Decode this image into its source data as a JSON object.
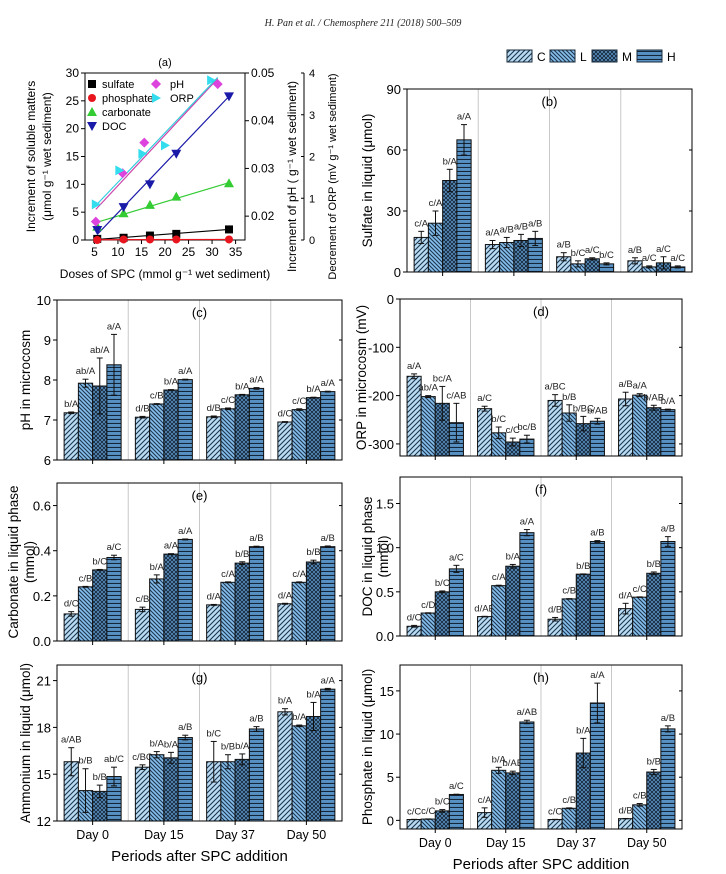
{
  "header": {
    "citation": "H. Pan et al. / Chemosphere 211 (2018) 500–509"
  },
  "legend": {
    "items": [
      {
        "label": "C",
        "pattern": "diag-up",
        "color": "#a8d3f0"
      },
      {
        "label": "L",
        "pattern": "diag-down",
        "color": "#7fb8e6"
      },
      {
        "label": "M",
        "pattern": "cross",
        "color": "#5f98c8"
      },
      {
        "label": "H",
        "pattern": "horizontal",
        "color": "#4f87b8"
      }
    ]
  },
  "chart_data": [
    {
      "id": "a",
      "type": "scatter",
      "panel_label": "(a)",
      "xlabel": "Doses of SPC (mmol g⁻¹ wet sediment)",
      "ylabel": "Increment of soluble matters (μmol g⁻¹ wet sediment)",
      "ylabel_line1": "Increment of soluble matters",
      "ylabel_line2": "(μmol g⁻¹ wet sediment)",
      "y2label": "Increment of pH ( g⁻¹ wet sediment)",
      "y3label": "Decrement of ORP (mV g⁻¹ wet sediment)",
      "xlim": [
        3,
        37
      ],
      "ylim": [
        0,
        30
      ],
      "y2lim": [
        0.015,
        0.05
      ],
      "y3lim": [
        0,
        4
      ],
      "xticks": [
        5,
        10,
        15,
        20,
        25,
        30,
        35
      ],
      "yticks": [
        0,
        5,
        10,
        15,
        20,
        25,
        30
      ],
      "y2ticks": [
        0.02,
        0.03,
        0.04,
        0.05
      ],
      "y3ticks": [
        0,
        1,
        2,
        3,
        4
      ],
      "series": [
        {
          "name": "sulfate",
          "marker": "square",
          "color": "#000000",
          "line_color": "#000000",
          "x": [
            5.6,
            11.2,
            16.8,
            22.4,
            33.6
          ],
          "y": [
            0.2,
            0.4,
            0.8,
            1.1,
            1.9
          ]
        },
        {
          "name": "phosphate",
          "marker": "circle",
          "color": "#e8141e",
          "line_color": "#e8141e",
          "x": [
            5.6,
            11.2,
            16.8,
            22.4,
            33.6
          ],
          "y": [
            0.0,
            0.1,
            0.1,
            0.1,
            0.1
          ]
        },
        {
          "name": "carbonate",
          "marker": "triangle-up",
          "color": "#33cc33",
          "line_color": "#33cc33",
          "x": [
            5.6,
            11.2,
            16.8,
            22.4,
            33.6
          ],
          "y": [
            2.4,
            4.8,
            6.3,
            7.8,
            10.2
          ]
        },
        {
          "name": "DOC",
          "marker": "triangle-down",
          "color": "#1a1aa8",
          "line_color": "#1a1aa8",
          "x": [
            5.6,
            11.2,
            16.8,
            22.4,
            33.6
          ],
          "y": [
            1.8,
            5.9,
            10.0,
            15.5,
            25.8
          ]
        },
        {
          "name": "pH",
          "marker": "diamond",
          "color": "#dd44dd",
          "line_color": "#cc44aa",
          "x": [
            5.3,
            11.0,
            15.6,
            31.2
          ],
          "y": [
            3.3,
            12.0,
            17.5,
            28.0
          ]
        },
        {
          "name": "ORP",
          "marker": "triangle-right",
          "color": "#33ddee",
          "line_color": "#33ccdd",
          "x": [
            5.3,
            10.3,
            15.2,
            20.0,
            29.8
          ],
          "y": [
            6.4,
            12.5,
            15.5,
            17.0,
            28.7
          ]
        }
      ],
      "fits": [
        {
          "name": "sulfate",
          "x": [
            5.6,
            33.6
          ],
          "y": [
            0.1,
            1.9
          ]
        },
        {
          "name": "phosphate",
          "x": [
            5.6,
            33.6
          ],
          "y": [
            0.05,
            0.1
          ]
        },
        {
          "name": "carbonate",
          "x": [
            5.6,
            33.6
          ],
          "y": [
            3.2,
            10.3
          ]
        },
        {
          "name": "DOC",
          "x": [
            5.6,
            33.6
          ],
          "y": [
            1.0,
            25.8
          ]
        },
        {
          "name": "pH",
          "x": [
            5.3,
            31.2
          ],
          "y": [
            5.5,
            29.0
          ]
        },
        {
          "name": "ORP",
          "x": [
            5.3,
            31.2
          ],
          "y": [
            6.2,
            29.2
          ]
        }
      ]
    },
    {
      "id": "b",
      "type": "bar",
      "panel_label": "(b)",
      "ylabel": "Sulfate in liquid (μmol)",
      "ylim": [
        0,
        90
      ],
      "yticks": [
        0,
        30,
        60,
        90
      ],
      "categories": [
        "Day 0",
        "Day 15",
        "Day 37",
        "Day 50"
      ],
      "show_xticks": false,
      "series": [
        {
          "name": "C",
          "values": [
            17,
            13.5,
            7.5,
            5.5
          ],
          "errors": [
            3,
            2,
            2,
            1.5
          ],
          "labels": [
            "c/A",
            "a/A",
            "a/B",
            "a/B"
          ]
        },
        {
          "name": "L",
          "values": [
            24,
            14.5,
            4,
            2.5
          ],
          "errors": [
            6,
            2.5,
            1.5,
            0.5
          ],
          "labels": [
            "c/A",
            "a/B",
            "b/C",
            "a/C"
          ]
        },
        {
          "name": "M",
          "values": [
            45,
            15.5,
            6.5,
            4.5
          ],
          "errors": [
            5.5,
            3,
            0.5,
            3
          ],
          "labels": [
            "b/A",
            "a/B",
            "a/C",
            "a/C"
          ]
        },
        {
          "name": "H",
          "values": [
            65,
            16.5,
            4,
            2.5
          ],
          "errors": [
            7.5,
            3.5,
            0.5,
            0.5
          ],
          "labels": [
            "a/A",
            "a/B",
            "b/C",
            "a/C"
          ]
        }
      ]
    },
    {
      "id": "c",
      "type": "bar",
      "panel_label": "(c)",
      "ylabel": "pH in microcosm",
      "ylim": [
        6,
        10
      ],
      "yticks": [
        6,
        7,
        8,
        9,
        10
      ],
      "categories": [
        "Day 0",
        "Day 15",
        "Day 37",
        "Day 50"
      ],
      "show_xticks": false,
      "series": [
        {
          "name": "C",
          "values": [
            7.18,
            7.07,
            7.08,
            6.95
          ],
          "errors": [
            0.02,
            0.02,
            0.02,
            0.01
          ],
          "labels": [
            "b/A",
            "d/B",
            "d/B",
            "d/C"
          ]
        },
        {
          "name": "L",
          "values": [
            7.92,
            7.4,
            7.28,
            7.26
          ],
          "errors": [
            0.1,
            0.01,
            0.02,
            0.02
          ],
          "labels": [
            "ab/A",
            "c/B",
            "c/C",
            "c/C"
          ]
        },
        {
          "name": "M",
          "values": [
            7.85,
            7.75,
            7.63,
            7.56
          ],
          "errors": [
            0.7,
            0.01,
            0.01,
            0.01
          ],
          "labels": [
            "ab/A",
            "b/A",
            "b/A",
            "b/A"
          ]
        },
        {
          "name": "H",
          "values": [
            8.38,
            8.01,
            7.79,
            7.71
          ],
          "errors": [
            0.76,
            0.01,
            0.02,
            0.01
          ],
          "labels": [
            "a/A",
            "a/A",
            "a/A",
            "a/A"
          ]
        }
      ]
    },
    {
      "id": "d",
      "type": "bar",
      "panel_label": "(d)",
      "ylabel": "ORP in microcosm (mV)",
      "ylim": [
        -325,
        0
      ],
      "yticks": [
        -300,
        -200,
        -100,
        0
      ],
      "bar_base": -325,
      "categories": [
        "Day 0",
        "Day 15",
        "Day 37",
        "Day 50"
      ],
      "show_xticks": false,
      "series": [
        {
          "name": "C",
          "values": [
            -160,
            -227,
            -210,
            -207
          ],
          "errors": [
            5,
            5,
            12,
            14
          ],
          "labels": [
            "a/A",
            "a/C",
            "a/BC",
            "a/B"
          ]
        },
        {
          "name": "L",
          "values": [
            -202,
            -277,
            -236,
            -199
          ],
          "errors": [
            2,
            12,
            17,
            3
          ],
          "labels": [
            "ab/A",
            "b/C",
            "b/B",
            "a/A"
          ]
        },
        {
          "name": "M",
          "values": [
            -216,
            -296,
            -258,
            -225
          ],
          "errors": [
            35,
            8,
            15,
            5
          ],
          "labels": [
            "bc/A",
            "c/C",
            "b/BC",
            "b/AB"
          ]
        },
        {
          "name": "H",
          "values": [
            -256,
            -290,
            -253,
            -229
          ],
          "errors": [
            40,
            8,
            6,
            1
          ],
          "labels": [
            "c/AB",
            "bc/B",
            "b/AB",
            "b/A"
          ]
        }
      ]
    },
    {
      "id": "e",
      "type": "bar",
      "panel_label": "(e)",
      "ylabel": "Carbonate in liquid phase (mmol)",
      "ylabel_line1": "Carbonate in liquid phase",
      "ylabel_line2": "(mmol)",
      "ylim": [
        0,
        0.7
      ],
      "yticks": [
        0.0,
        0.2,
        0.4,
        0.6
      ],
      "ytick_format": 1,
      "categories": [
        "Day 0",
        "Day 15",
        "Day 37",
        "Day 50"
      ],
      "show_xticks": false,
      "series": [
        {
          "name": "C",
          "values": [
            0.12,
            0.14,
            0.16,
            0.165
          ],
          "errors": [
            0.01,
            0.01,
            0.002,
            0.002
          ],
          "labels": [
            "d/C",
            "c/B",
            "d/A",
            "d/A"
          ]
        },
        {
          "name": "L",
          "values": [
            0.24,
            0.275,
            0.26,
            0.26
          ],
          "errors": [
            0.002,
            0.018,
            0.002,
            0.002
          ],
          "labels": [
            "c/B",
            "b/A",
            "c/A",
            "c/A"
          ]
        },
        {
          "name": "M",
          "values": [
            0.315,
            0.385,
            0.345,
            0.35
          ],
          "errors": [
            0.002,
            0.002,
            0.006,
            0.008
          ],
          "labels": [
            "b/C",
            "a/A",
            "b/B",
            "b/B"
          ]
        },
        {
          "name": "H",
          "values": [
            0.37,
            0.45,
            0.418,
            0.418
          ],
          "errors": [
            0.01,
            0.002,
            0.002,
            0.003
          ],
          "labels": [
            "a/C",
            "a/A",
            "a/B",
            "a/B"
          ]
        }
      ]
    },
    {
      "id": "f",
      "type": "bar",
      "panel_label": "(f)",
      "ylabel": "DOC in liquid phase (mmol)",
      "ylabel_line1": "DOC in liquid phase",
      "ylabel_line2": "(mmol)",
      "ylim": [
        0,
        1.8
      ],
      "yticks": [
        0.0,
        0.5,
        1.0,
        1.5
      ],
      "ytick_format": 1,
      "categories": [
        "Day 0",
        "Day 15",
        "Day 37",
        "Day 50"
      ],
      "show_xticks": false,
      "series": [
        {
          "name": "C",
          "values": [
            0.11,
            0.22,
            0.19,
            0.31
          ],
          "errors": [
            0.01,
            0.003,
            0.02,
            0.06
          ],
          "labels": [
            "d/C",
            "d/AB",
            "d/B",
            "d/A"
          ]
        },
        {
          "name": "L",
          "values": [
            0.26,
            0.57,
            0.42,
            0.44
          ],
          "errors": [
            0.003,
            0.005,
            0.003,
            0.003
          ],
          "labels": [
            "c/D",
            "c/A",
            "c/B",
            "c/C"
          ]
        },
        {
          "name": "M",
          "values": [
            0.5,
            0.79,
            0.7,
            0.71
          ],
          "errors": [
            0.01,
            0.02,
            0.003,
            0.015
          ],
          "labels": [
            "b/C",
            "b/A",
            "b/B",
            "b/B"
          ]
        },
        {
          "name": "H",
          "values": [
            0.76,
            1.17,
            1.07,
            1.07
          ],
          "errors": [
            0.04,
            0.035,
            0.01,
            0.055
          ],
          "labels": [
            "a/C",
            "a/A",
            "a/B",
            "a/B"
          ]
        }
      ]
    },
    {
      "id": "g",
      "type": "bar",
      "panel_label": "(g)",
      "ylabel": "Ammonium in liquid (μmol)",
      "ylim": [
        12,
        22
      ],
      "yticks": [
        12,
        15,
        18,
        21
      ],
      "xlabel": "Periods after SPC addition",
      "categories": [
        "Day 0",
        "Day 15",
        "Day 37",
        "Day 50"
      ],
      "show_xticks": true,
      "series": [
        {
          "name": "C",
          "values": [
            15.8,
            15.45,
            15.8,
            19.0
          ],
          "errors": [
            0.9,
            0.15,
            1.3,
            0.2
          ],
          "labels": [
            "a/AB",
            "c/BC",
            "b/C",
            "b/A"
          ]
        },
        {
          "name": "L",
          "values": [
            13.95,
            16.25,
            15.8,
            18.1
          ],
          "errors": [
            1.4,
            0.2,
            0.45,
            0.05
          ],
          "labels": [
            "b/B",
            "b/A",
            "b/B",
            "b/A"
          ]
        },
        {
          "name": "M",
          "values": [
            13.9,
            16.05,
            15.95,
            18.7
          ],
          "errors": [
            0.4,
            0.35,
            0.35,
            0.9
          ],
          "labels": [
            "b/B",
            "b/A",
            "b/A",
            "b/A"
          ]
        },
        {
          "name": "H",
          "values": [
            14.85,
            17.35,
            17.9,
            20.45
          ],
          "errors": [
            0.6,
            0.15,
            0.15,
            0.05
          ],
          "labels": [
            "ab/C",
            "a/B",
            "a/B",
            "a/A"
          ]
        }
      ]
    },
    {
      "id": "h",
      "type": "bar",
      "panel_label": "(h)",
      "ylabel": "Phosphate in liquid (μmol)",
      "ylim": [
        -1,
        18
      ],
      "yticks": [
        0,
        5,
        10,
        15
      ],
      "bar_base": -1,
      "xlabel": "Periods after SPC addition",
      "categories": [
        "Day 0",
        "Day 15",
        "Day 37",
        "Day 50"
      ],
      "show_xticks": true,
      "series": [
        {
          "name": "C",
          "values": [
            0.1,
            0.9,
            0.1,
            0.2
          ],
          "errors": [
            0.02,
            0.55,
            0.02,
            0.02
          ],
          "labels": [
            "c/C",
            "c/A",
            "c/C",
            "d/B"
          ]
        },
        {
          "name": "L",
          "values": [
            0.15,
            5.8,
            1.4,
            1.8
          ],
          "errors": [
            0.02,
            0.35,
            0.05,
            0.15
          ],
          "labels": [
            "c/C",
            "b/A",
            "c/B",
            "c/B"
          ]
        },
        {
          "name": "M",
          "values": [
            1.1,
            5.5,
            7.8,
            5.6
          ],
          "errors": [
            0.15,
            0.2,
            1.7,
            0.3
          ],
          "labels": [
            "b/C",
            "b/AB",
            "b/A",
            "b/B"
          ]
        },
        {
          "name": "H",
          "values": [
            3.0,
            11.4,
            13.6,
            10.6
          ],
          "errors": [
            0.03,
            0.2,
            2.3,
            0.35
          ],
          "labels": [
            "a/C",
            "a/AB",
            "a/A",
            "a/B"
          ]
        }
      ]
    }
  ]
}
